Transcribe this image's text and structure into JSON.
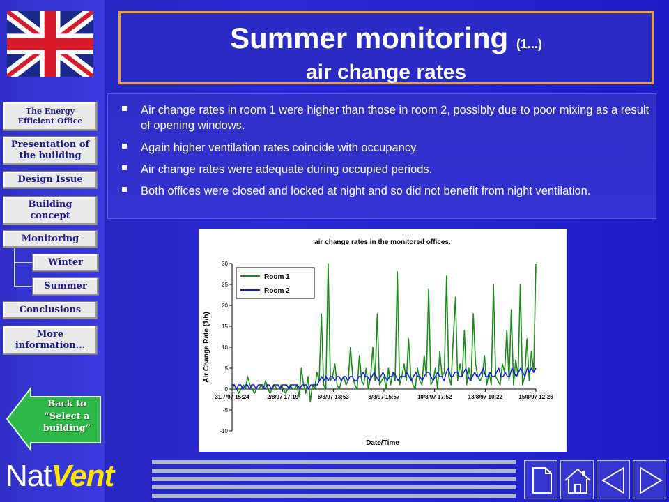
{
  "title": {
    "main": "Summer monitoring",
    "suffix": "(1...)",
    "subtitle": "air change rates"
  },
  "sidebar": {
    "items": [
      {
        "label": "The Energy Efficient Office"
      },
      {
        "label": "Presentation of the building"
      },
      {
        "label": "Design Issue"
      },
      {
        "label": "Building concept"
      },
      {
        "label": "Monitoring"
      },
      {
        "label": "Winter"
      },
      {
        "label": "Summer"
      },
      {
        "label": "Conclusions"
      },
      {
        "label": "More information..."
      }
    ],
    "back_button": {
      "line1": "Back to",
      "line2": "“Select a",
      "line3": "building”"
    },
    "logo": {
      "part1": "Nat",
      "part2": "Vent"
    }
  },
  "bullets": [
    "Air change rates in room 1 were higher than those in room 2, possibly due to poor mixing as a result of opening windows.",
    "Again higher ventilation rates coincide with occupancy.",
    "Air change rates were adequate during occupied periods.",
    "Both offices were closed and locked at night and so did not benefit from night ventilation."
  ],
  "colors": {
    "background": "#2626c8",
    "title_border": "#f0a030",
    "room1": "#1a8a1a",
    "room2": "#1414e6",
    "logo_accent": "#ffe600"
  },
  "icons": [
    "flag-icon",
    "document-icon",
    "home-icon",
    "previous-icon",
    "next-icon"
  ],
  "chart_data": {
    "type": "line",
    "title": "air change rates in the monitored offices.",
    "xlabel": "Date/Time",
    "ylabel": "Air Change Rate (1/h)",
    "ylim": [
      -10,
      30
    ],
    "yticks": [
      -10,
      -5,
      0,
      5,
      10,
      15,
      20,
      25,
      30
    ],
    "x_tick_labels": [
      "31/7/97 15:24",
      "2/8/97 17:19",
      "6/8/97 13:53",
      "8/8/97 15:57",
      "10/8/97 17:52",
      "13/8/97 10:22",
      "15/8/97 12:26"
    ],
    "legend_position": "top-left",
    "grid": false,
    "series": [
      {
        "name": "Room 1",
        "color": "#1a8a1a",
        "values": [
          0,
          1,
          0,
          -1,
          0,
          1,
          0,
          3,
          1,
          0,
          -1,
          0,
          0,
          1,
          0,
          2,
          0,
          -1,
          0,
          1,
          0,
          0,
          1,
          0,
          -1,
          0,
          1,
          0,
          0,
          1,
          -2,
          5,
          1,
          -1,
          3,
          -3,
          1,
          0,
          4,
          2,
          18,
          1,
          0,
          30,
          2,
          3,
          6,
          1,
          0,
          2,
          3,
          1,
          2,
          10,
          3,
          1,
          0,
          8,
          2,
          1,
          5,
          0,
          3,
          10,
          2,
          18,
          1,
          2,
          3,
          0,
          5,
          1,
          4,
          2,
          28,
          1,
          3,
          6,
          2,
          12,
          3,
          1,
          0,
          5,
          2,
          1,
          8,
          3,
          24,
          1,
          2,
          5,
          0,
          9,
          3,
          4,
          27,
          3,
          1,
          12,
          22,
          2,
          6,
          3,
          14,
          1,
          5,
          2,
          18,
          6,
          3,
          2,
          3,
          8,
          1,
          4,
          1,
          25,
          3,
          2,
          1,
          6,
          4,
          14,
          2,
          19,
          1,
          7,
          3,
          25,
          1,
          3,
          12,
          2,
          9,
          4,
          30
        ]
      },
      {
        "name": "Room 2",
        "color": "#1414e6",
        "values": [
          1,
          1,
          0,
          1,
          1,
          0,
          1,
          1,
          0,
          1,
          1,
          0,
          1,
          1,
          1,
          0,
          1,
          1,
          0,
          1,
          1,
          1,
          0,
          1,
          1,
          1,
          0,
          1,
          1,
          1,
          1,
          0,
          1,
          1,
          1,
          0,
          1,
          1,
          1,
          1,
          2,
          3,
          2,
          3,
          2,
          3,
          3,
          2,
          3,
          3,
          2,
          3,
          3,
          2,
          3,
          3,
          2,
          2,
          3,
          3,
          4,
          3,
          3,
          2,
          3,
          4,
          3,
          2,
          3,
          4,
          3,
          2,
          3,
          3,
          4,
          3,
          2,
          3,
          3,
          3,
          4,
          3,
          2,
          3,
          4,
          3,
          3,
          2,
          3,
          4,
          4,
          3,
          2,
          3,
          4,
          3,
          3,
          2,
          4,
          5,
          3,
          3,
          4,
          4,
          3,
          3,
          4,
          5,
          3,
          2,
          3,
          4,
          3,
          3,
          4,
          5,
          3,
          3,
          4,
          3,
          3,
          4,
          5,
          3,
          3,
          4,
          3,
          3,
          5,
          4,
          3,
          4,
          5,
          4,
          3,
          5,
          4,
          5,
          4,
          5
        ]
      }
    ]
  }
}
